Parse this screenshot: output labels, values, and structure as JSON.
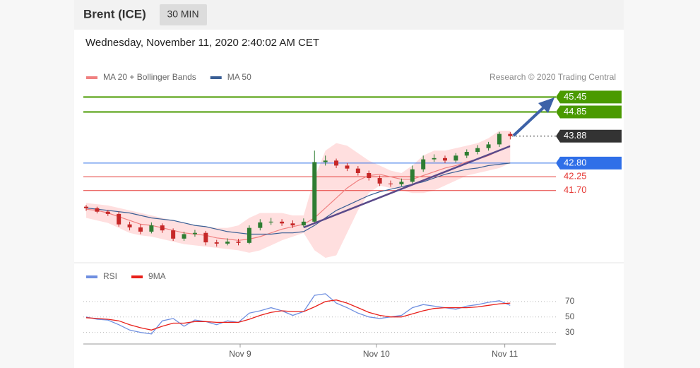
{
  "header": {
    "title": "Brent (ICE)",
    "timeframe": "30 MIN",
    "timestamp": "Wednesday, November 11, 2020 2:40:02 AM CET"
  },
  "chart_data": [
    {
      "type": "candlestick",
      "credit": "Research © 2020 Trading Central",
      "up_color": "#2e7d32",
      "down_color": "#c62828",
      "open": [
        41.05,
        40.99,
        40.85,
        40.76,
        40.34,
        40.22,
        40.05,
        40.3,
        40.1,
        39.77,
        39.95,
        40.0,
        39.62,
        39.57,
        39.65,
        39.6,
        40.2,
        40.42,
        40.45,
        40.38,
        40.3,
        40.45,
        42.84,
        42.9,
        42.7,
        42.58,
        42.4,
        42.2,
        41.98,
        41.95,
        42.05,
        42.55,
        42.95,
        43.0,
        42.9,
        43.1,
        43.25,
        43.4,
        43.55,
        43.97
      ],
      "high": [
        41.12,
        41.05,
        40.92,
        40.86,
        40.45,
        40.35,
        40.42,
        40.38,
        40.18,
        40.05,
        40.12,
        40.08,
        39.72,
        39.78,
        39.76,
        40.3,
        40.55,
        40.6,
        40.55,
        40.5,
        40.58,
        43.3,
        43.1,
        42.98,
        42.8,
        42.68,
        42.5,
        42.3,
        42.1,
        42.18,
        42.7,
        43.1,
        43.15,
        43.1,
        43.2,
        43.35,
        43.52,
        43.65,
        44.05,
        44.05
      ],
      "low": [
        40.88,
        40.78,
        40.68,
        40.25,
        40.1,
        39.95,
        39.98,
        40.0,
        39.68,
        39.68,
        39.85,
        39.5,
        39.45,
        39.5,
        39.5,
        39.55,
        40.1,
        40.32,
        40.28,
        40.2,
        40.22,
        40.38,
        42.7,
        42.6,
        42.48,
        42.3,
        42.1,
        41.88,
        41.85,
        41.88,
        41.98,
        42.45,
        42.85,
        42.8,
        42.82,
        43.0,
        43.15,
        43.3,
        43.45,
        43.75
      ],
      "close": [
        40.99,
        40.85,
        40.76,
        40.34,
        40.22,
        40.05,
        40.3,
        40.1,
        39.77,
        39.95,
        40.0,
        39.62,
        39.57,
        39.65,
        39.6,
        40.2,
        40.42,
        40.45,
        40.38,
        40.3,
        40.45,
        42.84,
        42.9,
        42.7,
        42.58,
        42.4,
        42.2,
        41.98,
        41.95,
        42.05,
        42.55,
        42.95,
        43.0,
        42.9,
        43.1,
        43.25,
        43.4,
        43.55,
        43.97,
        43.88
      ],
      "series": [
        {
          "name": "MA 20 + Bollinger Bands",
          "color": "#f08080",
          "values": [
            40.95,
            40.9,
            40.8,
            40.65,
            40.5,
            40.35,
            40.3,
            40.2,
            40.1,
            40.0,
            39.95,
            39.9,
            39.8,
            39.75,
            39.7,
            39.75,
            39.85,
            40.0,
            40.15,
            40.25,
            40.35,
            40.6,
            41.0,
            41.4,
            41.8,
            42.1,
            42.3,
            42.35,
            42.25,
            42.15,
            42.15,
            42.3,
            42.45,
            42.6,
            42.7,
            42.85,
            42.95,
            43.1,
            43.3,
            43.5
          ],
          "upper": [
            41.2,
            41.15,
            41.1,
            41.0,
            40.9,
            40.8,
            40.7,
            40.6,
            40.5,
            40.4,
            40.3,
            40.25,
            40.2,
            40.2,
            40.3,
            40.6,
            40.8,
            40.8,
            40.8,
            40.7,
            40.7,
            42.2,
            43.3,
            43.6,
            43.5,
            43.2,
            42.9,
            42.7,
            42.5,
            42.4,
            42.7,
            43.1,
            43.3,
            43.3,
            43.4,
            43.5,
            43.6,
            43.8,
            44.1,
            44.1
          ],
          "lower": [
            40.6,
            40.5,
            40.4,
            40.2,
            40.0,
            39.9,
            39.85,
            39.75,
            39.65,
            39.55,
            39.5,
            39.45,
            39.4,
            39.35,
            39.3,
            39.2,
            39.3,
            39.5,
            39.7,
            39.85,
            40.0,
            39.3,
            39.0,
            39.1,
            40.0,
            40.9,
            41.6,
            41.9,
            41.8,
            41.7,
            41.6,
            41.6,
            41.7,
            41.9,
            42.1,
            42.3,
            42.4,
            42.5,
            42.6,
            42.8
          ]
        },
        {
          "name": "MA 50",
          "color": "#3a5f95",
          "values": [
            41.0,
            40.95,
            40.9,
            40.85,
            40.8,
            40.7,
            40.6,
            40.55,
            40.5,
            40.4,
            40.3,
            40.25,
            40.15,
            40.05,
            40.0,
            39.95,
            39.95,
            39.95,
            40.0,
            40.0,
            40.05,
            40.3,
            40.6,
            40.9,
            41.1,
            41.3,
            41.5,
            41.65,
            41.75,
            41.85,
            41.95,
            42.05,
            42.2,
            42.35,
            42.45,
            42.55,
            42.6,
            42.7,
            42.75,
            42.8
          ]
        }
      ],
      "levels": {
        "values": [
          45.45,
          44.85,
          43.88,
          42.8,
          42.25,
          41.7
        ],
        "value_labels": [
          "45.45",
          "44.85",
          "43.88",
          "42.80",
          "42.25",
          "41.70"
        ],
        "colors": [
          "#4a9a00",
          "#4a9a00",
          "#333333",
          "#2f6fe8",
          "#e53935",
          "#e53935"
        ],
        "styles": [
          "box",
          "box",
          "box-dotted",
          "box",
          "text",
          "text"
        ]
      },
      "xlim": [
        -0.26,
        43.2
      ],
      "ylim": [
        39.0,
        45.8
      ]
    },
    {
      "type": "line",
      "series": [
        {
          "name": "RSI",
          "color": "#6f8fe0",
          "values": [
            50,
            47,
            46,
            40,
            33,
            30,
            28,
            45,
            48,
            38,
            46,
            44,
            40,
            45,
            43,
            55,
            58,
            62,
            58,
            52,
            57,
            78,
            80,
            68,
            62,
            55,
            50,
            48,
            50,
            52,
            62,
            66,
            64,
            62,
            60,
            64,
            66,
            69,
            71,
            65
          ]
        },
        {
          "name": "9MA",
          "color": "#e8201a",
          "values": [
            49,
            48,
            47,
            45,
            40,
            36,
            33,
            38,
            42,
            42,
            44,
            44,
            43,
            43,
            43,
            47,
            52,
            56,
            58,
            57,
            57,
            63,
            70,
            72,
            68,
            62,
            56,
            52,
            50,
            50,
            54,
            58,
            61,
            62,
            62,
            62,
            63,
            65,
            67,
            68
          ]
        }
      ],
      "xlim": [
        -0.26,
        43.2
      ],
      "xticks": [
        {
          "value": 14.16,
          "label": "Nov 9"
        },
        {
          "value": 26.69,
          "label": "Nov 10"
        },
        {
          "value": 38.5,
          "label": "Nov 11"
        }
      ],
      "ylim": [
        15,
        90
      ],
      "yticks": [
        70,
        50,
        30
      ]
    }
  ]
}
